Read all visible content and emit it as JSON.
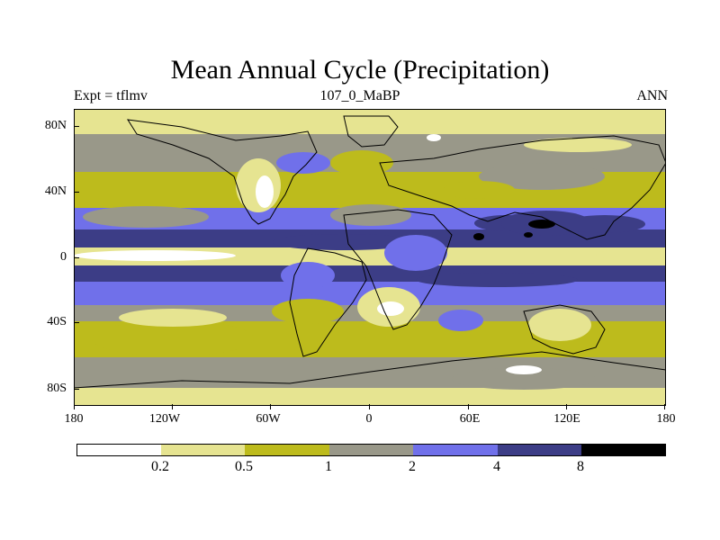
{
  "title": "Mean Annual Cycle (Precipitation)",
  "left_label": "Expt = tflmv",
  "center_label": "107_0_MaBP",
  "right_label": "ANN",
  "x_ticks": [
    "180",
    "120W",
    "60W",
    "0",
    "60E",
    "120E",
    "180"
  ],
  "y_ticks": [
    "80N",
    "40N",
    "0",
    "40S",
    "80S"
  ],
  "colorbar": {
    "labels": [
      "0.2",
      "0.5",
      "1",
      "2",
      "4",
      "8"
    ],
    "colors": [
      "#ffffff",
      "#e6e491",
      "#bdbb1c",
      "#999889",
      "#7070ea",
      "#3c3d86",
      "#000000"
    ]
  },
  "map_colors": {
    "white": "#ffffff",
    "pale": "#e6e491",
    "olive": "#bdbb1c",
    "grey": "#999889",
    "blue": "#7070ea",
    "navy": "#3c3d86",
    "black": "#000000"
  }
}
